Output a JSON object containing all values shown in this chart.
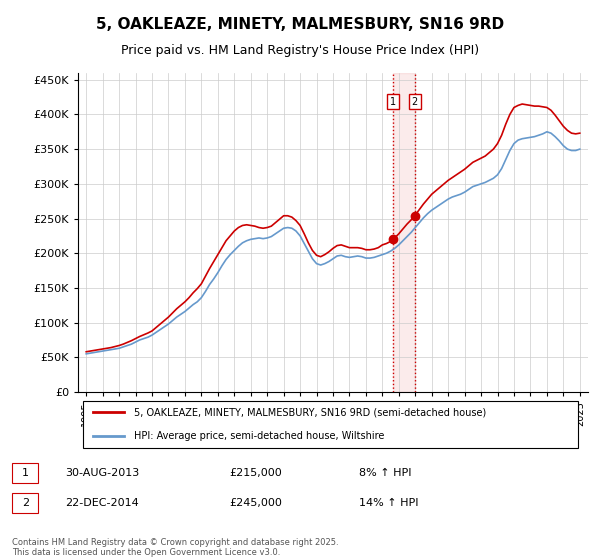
{
  "title_line1": "5, OAKLEAZE, MINETY, MALMESBURY, SN16 9RD",
  "title_line2": "Price paid vs. HM Land Registry's House Price Index (HPI)",
  "ylabel": "",
  "legend_property": "5, OAKLEAZE, MINETY, MALMESBURY, SN16 9RD (semi-detached house)",
  "legend_hpi": "HPI: Average price, semi-detached house, Wiltshire",
  "footnote": "Contains HM Land Registry data © Crown copyright and database right 2025.\nThis data is licensed under the Open Government Licence v3.0.",
  "purchase1_label": "1",
  "purchase1_date": "30-AUG-2013",
  "purchase1_price": "£215,000",
  "purchase1_hpi": "8% ↑ HPI",
  "purchase2_label": "2",
  "purchase2_date": "22-DEC-2014",
  "purchase2_price": "£245,000",
  "purchase2_hpi": "14% ↑ HPI",
  "property_color": "#cc0000",
  "hpi_color": "#6699cc",
  "vline_color": "#cc0000",
  "vline_style": ":",
  "purchase1_x": 2013.66,
  "purchase2_x": 2014.97,
  "ylim_min": 0,
  "ylim_max": 460000,
  "xlim_min": 1994.5,
  "xlim_max": 2025.5,
  "yticks": [
    0,
    50000,
    100000,
    150000,
    200000,
    250000,
    300000,
    350000,
    400000,
    450000
  ],
  "ytick_labels": [
    "£0",
    "£50K",
    "£100K",
    "£150K",
    "£200K",
    "£250K",
    "£300K",
    "£350K",
    "£400K",
    "£450K"
  ],
  "hpi_years": [
    1995,
    1995.25,
    1995.5,
    1995.75,
    1996,
    1996.25,
    1996.5,
    1996.75,
    1997,
    1997.25,
    1997.5,
    1997.75,
    1998,
    1998.25,
    1998.5,
    1998.75,
    1999,
    1999.25,
    1999.5,
    1999.75,
    2000,
    2000.25,
    2000.5,
    2000.75,
    2001,
    2001.25,
    2001.5,
    2001.75,
    2002,
    2002.25,
    2002.5,
    2002.75,
    2003,
    2003.25,
    2003.5,
    2003.75,
    2004,
    2004.25,
    2004.5,
    2004.75,
    2005,
    2005.25,
    2005.5,
    2005.75,
    2006,
    2006.25,
    2006.5,
    2006.75,
    2007,
    2007.25,
    2007.5,
    2007.75,
    2008,
    2008.25,
    2008.5,
    2008.75,
    2009,
    2009.25,
    2009.5,
    2009.75,
    2010,
    2010.25,
    2010.5,
    2010.75,
    2011,
    2011.25,
    2011.5,
    2011.75,
    2012,
    2012.25,
    2012.5,
    2012.75,
    2013,
    2013.25,
    2013.5,
    2013.75,
    2014,
    2014.25,
    2014.5,
    2014.75,
    2015,
    2015.25,
    2015.5,
    2015.75,
    2016,
    2016.25,
    2016.5,
    2016.75,
    2017,
    2017.25,
    2017.5,
    2017.75,
    2018,
    2018.25,
    2018.5,
    2018.75,
    2019,
    2019.25,
    2019.5,
    2019.75,
    2020,
    2020.25,
    2020.5,
    2020.75,
    2021,
    2021.25,
    2021.5,
    2021.75,
    2022,
    2022.25,
    2022.5,
    2022.75,
    2023,
    2023.25,
    2023.5,
    2023.75,
    2024,
    2024.25,
    2024.5,
    2024.75,
    2025
  ],
  "hpi_values": [
    55000,
    56000,
    57000,
    58000,
    59000,
    60000,
    61000,
    62000,
    63000,
    65000,
    67000,
    69000,
    72000,
    75000,
    77000,
    79000,
    82000,
    86000,
    90000,
    94000,
    98000,
    103000,
    108000,
    112000,
    116000,
    121000,
    126000,
    130000,
    136000,
    145000,
    155000,
    163000,
    172000,
    182000,
    191000,
    198000,
    204000,
    210000,
    215000,
    218000,
    220000,
    221000,
    222000,
    221000,
    222000,
    224000,
    228000,
    232000,
    236000,
    237000,
    236000,
    232000,
    225000,
    214000,
    203000,
    192000,
    185000,
    183000,
    185000,
    188000,
    192000,
    196000,
    197000,
    195000,
    194000,
    195000,
    196000,
    195000,
    193000,
    193000,
    194000,
    196000,
    198000,
    200000,
    203000,
    207000,
    212000,
    218000,
    224000,
    230000,
    237000,
    244000,
    251000,
    257000,
    262000,
    266000,
    270000,
    274000,
    278000,
    281000,
    283000,
    285000,
    288000,
    292000,
    296000,
    298000,
    300000,
    302000,
    305000,
    308000,
    313000,
    322000,
    335000,
    348000,
    358000,
    363000,
    365000,
    366000,
    367000,
    368000,
    370000,
    372000,
    375000,
    373000,
    368000,
    362000,
    355000,
    350000,
    348000,
    348000,
    350000
  ],
  "prop_years": [
    1995,
    1995.25,
    1995.5,
    1995.75,
    1996,
    1996.25,
    1996.5,
    1996.75,
    1997,
    1997.25,
    1997.5,
    1997.75,
    1998,
    1998.25,
    1998.5,
    1998.75,
    1999,
    1999.25,
    1999.5,
    1999.75,
    2000,
    2000.25,
    2000.5,
    2000.75,
    2001,
    2001.25,
    2001.5,
    2001.75,
    2002,
    2002.25,
    2002.5,
    2002.75,
    2003,
    2003.25,
    2003.5,
    2003.75,
    2004,
    2004.25,
    2004.5,
    2004.75,
    2005,
    2005.25,
    2005.5,
    2005.75,
    2006,
    2006.25,
    2006.5,
    2006.75,
    2007,
    2007.25,
    2007.5,
    2007.75,
    2008,
    2008.25,
    2008.5,
    2008.75,
    2009,
    2009.25,
    2009.5,
    2009.75,
    2010,
    2010.25,
    2010.5,
    2010.75,
    2011,
    2011.25,
    2011.5,
    2011.75,
    2012,
    2012.25,
    2012.5,
    2012.75,
    2013,
    2013.25,
    2013.5,
    2013.75,
    2014,
    2014.25,
    2014.5,
    2014.75,
    2015,
    2015.25,
    2015.5,
    2015.75,
    2016,
    2016.25,
    2016.5,
    2016.75,
    2017,
    2017.25,
    2017.5,
    2017.75,
    2018,
    2018.25,
    2018.5,
    2018.75,
    2019,
    2019.25,
    2019.5,
    2019.75,
    2020,
    2020.25,
    2020.5,
    2020.75,
    2021,
    2021.25,
    2021.5,
    2021.75,
    2022,
    2022.25,
    2022.5,
    2022.75,
    2023,
    2023.25,
    2023.5,
    2023.75,
    2024,
    2024.25,
    2024.5,
    2024.75,
    2025
  ],
  "prop_values": [
    58000,
    59000,
    60000,
    61000,
    62000,
    63000,
    64000,
    65500,
    67000,
    69000,
    71500,
    74000,
    77000,
    80000,
    82500,
    85000,
    88000,
    93000,
    98000,
    103000,
    108000,
    114000,
    120000,
    125000,
    130000,
    136000,
    143000,
    149000,
    156000,
    167000,
    178000,
    188000,
    198000,
    208000,
    218000,
    225000,
    232000,
    237000,
    240000,
    241000,
    240000,
    239000,
    237000,
    236000,
    237000,
    239000,
    244000,
    249000,
    254000,
    254000,
    252000,
    247000,
    240000,
    228000,
    215000,
    204000,
    197000,
    195000,
    198000,
    202000,
    207000,
    211000,
    212000,
    210000,
    208000,
    208000,
    208000,
    207000,
    205000,
    205000,
    206000,
    208000,
    212000,
    214000,
    217000,
    222000,
    228000,
    235000,
    242000,
    248000,
    255000,
    263000,
    271000,
    278000,
    285000,
    290000,
    295000,
    300000,
    305000,
    309000,
    313000,
    317000,
    321000,
    326000,
    331000,
    334000,
    337000,
    340000,
    345000,
    350000,
    358000,
    370000,
    386000,
    400000,
    410000,
    413000,
    415000,
    414000,
    413000,
    412000,
    412000,
    411000,
    410000,
    406000,
    399000,
    391000,
    383000,
    377000,
    373000,
    372000,
    373000
  ]
}
